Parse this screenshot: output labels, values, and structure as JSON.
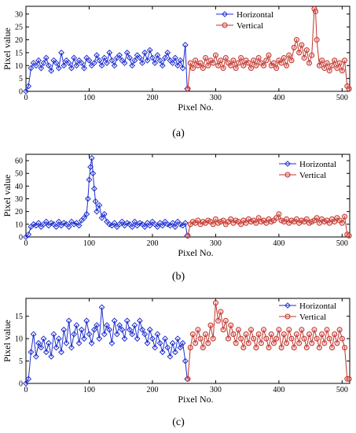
{
  "chart_data": [
    {
      "type": "line",
      "panel_label": "(a)",
      "xlabel": "Pixel No.",
      "ylabel": "Pixel value",
      "xlim": [
        0,
        512
      ],
      "ylim": [
        0,
        33
      ],
      "xticks": [
        0,
        100,
        200,
        300,
        400,
        500
      ],
      "yticks": [
        0,
        5,
        10,
        15,
        20,
        25,
        30
      ],
      "legend": "top-center",
      "series": [
        {
          "name": "Horizontal",
          "color": "#1f2fd0",
          "marker": "diamond",
          "x": [
            0,
            4,
            8,
            12,
            16,
            20,
            24,
            28,
            32,
            36,
            40,
            44,
            48,
            52,
            56,
            60,
            64,
            68,
            72,
            76,
            80,
            84,
            88,
            92,
            96,
            100,
            104,
            108,
            112,
            116,
            120,
            124,
            128,
            132,
            136,
            140,
            144,
            148,
            152,
            156,
            160,
            164,
            168,
            172,
            176,
            180,
            184,
            188,
            192,
            196,
            200,
            204,
            208,
            212,
            216,
            220,
            224,
            228,
            232,
            236,
            240,
            244,
            248,
            252,
            255
          ],
          "y": [
            0,
            2,
            9,
            11,
            10,
            12,
            9,
            11,
            13,
            10,
            8,
            12,
            11,
            9,
            15,
            10,
            12,
            11,
            9,
            13,
            10,
            12,
            11,
            9,
            13,
            12,
            10,
            11,
            14,
            12,
            10,
            13,
            11,
            15,
            12,
            10,
            13,
            14,
            12,
            11,
            15,
            13,
            10,
            12,
            14,
            13,
            11,
            15,
            12,
            16,
            13,
            11,
            14,
            12,
            10,
            13,
            15,
            12,
            11,
            13,
            10,
            12,
            9,
            18,
            1
          ]
        },
        {
          "name": "Vertical",
          "color": "#c0332a",
          "marker": "circle",
          "x": [
            256,
            260,
            264,
            268,
            272,
            276,
            280,
            284,
            288,
            292,
            296,
            300,
            304,
            308,
            312,
            316,
            320,
            324,
            328,
            332,
            336,
            340,
            344,
            348,
            352,
            356,
            360,
            364,
            368,
            372,
            376,
            380,
            384,
            388,
            392,
            396,
            400,
            404,
            408,
            412,
            416,
            420,
            424,
            428,
            432,
            436,
            440,
            444,
            448,
            452,
            456,
            458,
            460,
            464,
            468,
            472,
            476,
            480,
            484,
            488,
            492,
            496,
            500,
            504,
            508,
            511
          ],
          "y": [
            1,
            11,
            9,
            12,
            10,
            11,
            9,
            13,
            10,
            12,
            11,
            14,
            10,
            12,
            9,
            13,
            11,
            10,
            12,
            9,
            11,
            13,
            10,
            12,
            11,
            9,
            12,
            10,
            13,
            11,
            10,
            12,
            14,
            10,
            11,
            9,
            12,
            11,
            13,
            10,
            14,
            12,
            17,
            20,
            15,
            18,
            13,
            16,
            11,
            14,
            32,
            31,
            20,
            10,
            12,
            9,
            11,
            8,
            10,
            12,
            9,
            11,
            8,
            12,
            2,
            1
          ]
        }
      ]
    },
    {
      "type": "line",
      "panel_label": "(b)",
      "xlabel": "Pixel No.",
      "ylabel": "Pixel value",
      "xlim": [
        0,
        512
      ],
      "ylim": [
        0,
        65
      ],
      "xticks": [
        0,
        100,
        200,
        300,
        400,
        500
      ],
      "yticks": [
        0,
        10,
        20,
        30,
        40,
        50,
        60
      ],
      "legend": "top-right",
      "series": [
        {
          "name": "Horizontal",
          "color": "#1f2fd0",
          "marker": "diamond",
          "x": [
            0,
            4,
            8,
            12,
            16,
            20,
            24,
            28,
            32,
            36,
            40,
            44,
            48,
            52,
            56,
            60,
            64,
            68,
            72,
            76,
            80,
            84,
            88,
            92,
            96,
            98,
            100,
            102,
            104,
            106,
            108,
            110,
            112,
            116,
            120,
            124,
            128,
            132,
            136,
            140,
            144,
            148,
            152,
            156,
            160,
            164,
            168,
            172,
            176,
            180,
            184,
            188,
            192,
            196,
            200,
            204,
            208,
            212,
            216,
            220,
            224,
            228,
            232,
            236,
            240,
            244,
            248,
            252,
            255
          ],
          "y": [
            0,
            2,
            8,
            10,
            9,
            11,
            8,
            10,
            12,
            9,
            11,
            10,
            8,
            12,
            9,
            11,
            10,
            8,
            12,
            10,
            11,
            9,
            13,
            15,
            18,
            30,
            45,
            55,
            62,
            50,
            38,
            28,
            20,
            25,
            15,
            18,
            12,
            10,
            9,
            11,
            8,
            10,
            12,
            9,
            11,
            10,
            8,
            12,
            9,
            11,
            10,
            8,
            11,
            9,
            12,
            10,
            8,
            11,
            9,
            12,
            10,
            9,
            11,
            8,
            12,
            10,
            9,
            11,
            1
          ]
        },
        {
          "name": "Vertical",
          "color": "#c0332a",
          "marker": "circle",
          "x": [
            256,
            260,
            264,
            268,
            272,
            276,
            280,
            284,
            288,
            292,
            296,
            300,
            304,
            308,
            312,
            316,
            320,
            324,
            328,
            332,
            336,
            340,
            344,
            348,
            352,
            356,
            360,
            364,
            368,
            372,
            376,
            380,
            384,
            388,
            392,
            396,
            400,
            404,
            408,
            412,
            416,
            420,
            424,
            428,
            432,
            436,
            440,
            444,
            448,
            452,
            456,
            460,
            464,
            468,
            472,
            476,
            480,
            484,
            488,
            492,
            496,
            500,
            504,
            508,
            511
          ],
          "y": [
            1,
            10,
            12,
            11,
            13,
            10,
            12,
            11,
            13,
            12,
            10,
            14,
            11,
            12,
            13,
            10,
            12,
            14,
            11,
            13,
            12,
            10,
            13,
            11,
            14,
            12,
            13,
            11,
            15,
            12,
            13,
            11,
            14,
            12,
            13,
            15,
            18,
            13,
            12,
            14,
            11,
            13,
            12,
            14,
            11,
            13,
            12,
            14,
            11,
            12,
            13,
            15,
            11,
            14,
            12,
            13,
            11,
            14,
            12,
            15,
            13,
            11,
            16,
            2,
            1
          ]
        }
      ]
    },
    {
      "type": "line",
      "panel_label": "(c)",
      "xlabel": "Pixel No.",
      "ylabel": "Pixel value",
      "xlim": [
        0,
        512
      ],
      "ylim": [
        0,
        19
      ],
      "xticks": [
        0,
        100,
        200,
        300,
        400,
        500
      ],
      "yticks": [
        0,
        5,
        10,
        15
      ],
      "legend": "top-right",
      "series": [
        {
          "name": "Horizontal",
          "color": "#1f2fd0",
          "marker": "diamond",
          "x": [
            0,
            4,
            8,
            12,
            16,
            20,
            24,
            28,
            32,
            36,
            40,
            44,
            48,
            52,
            56,
            60,
            64,
            68,
            72,
            76,
            80,
            84,
            88,
            92,
            96,
            100,
            104,
            108,
            112,
            116,
            120,
            124,
            128,
            132,
            136,
            140,
            144,
            148,
            152,
            156,
            160,
            164,
            168,
            172,
            176,
            180,
            184,
            188,
            192,
            196,
            200,
            204,
            208,
            212,
            216,
            220,
            224,
            228,
            232,
            236,
            240,
            244,
            248,
            252,
            255
          ],
          "y": [
            0,
            1,
            7,
            11,
            6,
            9,
            8,
            10,
            7,
            9,
            6,
            11,
            8,
            10,
            7,
            12,
            9,
            14,
            8,
            11,
            13,
            9,
            12,
            10,
            14,
            11,
            9,
            12,
            13,
            10,
            17,
            11,
            13,
            12,
            9,
            14,
            11,
            13,
            12,
            10,
            14,
            12,
            11,
            13,
            10,
            14,
            12,
            11,
            9,
            12,
            10,
            8,
            11,
            9,
            7,
            10,
            8,
            6,
            9,
            7,
            10,
            8,
            9,
            5,
            1
          ]
        },
        {
          "name": "Vertical",
          "color": "#c0332a",
          "marker": "circle",
          "x": [
            256,
            260,
            264,
            268,
            272,
            276,
            280,
            284,
            288,
            292,
            296,
            300,
            304,
            308,
            312,
            316,
            320,
            324,
            328,
            332,
            336,
            340,
            344,
            348,
            352,
            356,
            360,
            364,
            368,
            372,
            376,
            380,
            384,
            388,
            392,
            396,
            400,
            404,
            408,
            412,
            416,
            420,
            424,
            428,
            432,
            436,
            440,
            444,
            448,
            452,
            456,
            460,
            464,
            468,
            472,
            476,
            480,
            484,
            488,
            492,
            496,
            500,
            504,
            508,
            511
          ],
          "y": [
            1,
            8,
            11,
            9,
            12,
            10,
            8,
            11,
            9,
            13,
            10,
            18,
            14,
            16,
            12,
            14,
            10,
            13,
            11,
            9,
            12,
            10,
            8,
            11,
            9,
            12,
            10,
            8,
            11,
            9,
            12,
            10,
            8,
            11,
            9,
            10,
            12,
            8,
            11,
            9,
            12,
            10,
            8,
            11,
            9,
            12,
            10,
            8,
            11,
            9,
            12,
            10,
            8,
            11,
            9,
            12,
            10,
            8,
            11,
            9,
            12,
            10,
            8,
            1,
            1
          ]
        }
      ]
    }
  ]
}
